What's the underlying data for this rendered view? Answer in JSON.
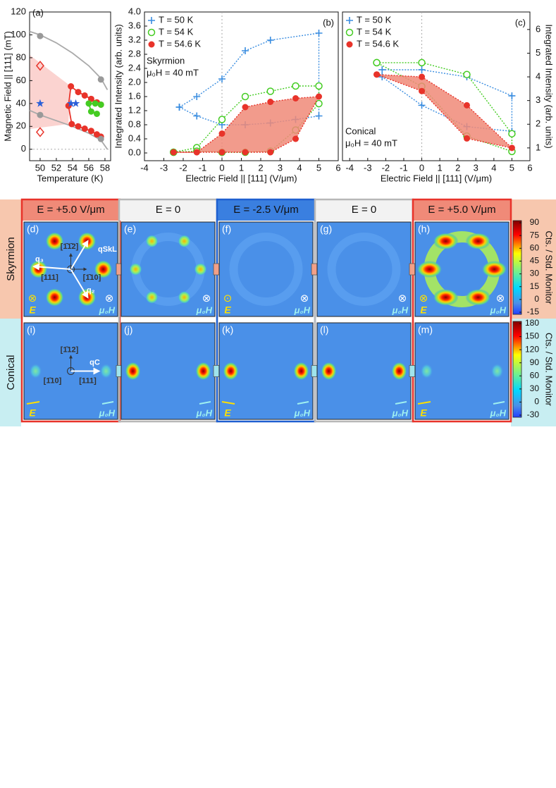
{
  "chart_data": [
    {
      "type": "line",
      "panel_label": "(a)",
      "x_label": "Temperature (K)",
      "y_label": "Magnetic Field || [111] (mT)",
      "xlim": [
        48.7,
        58.7
      ],
      "xticks": [
        50,
        52,
        54,
        56,
        58
      ],
      "ylim": [
        -10,
        120
      ],
      "yticks": [
        0,
        20,
        40,
        60,
        80,
        100,
        120
      ],
      "zero_line": "y",
      "series": [
        {
          "color": "#aaaaaa",
          "line": "solid",
          "marker": "none",
          "x": [
            48.7,
            50,
            52,
            54,
            56,
            57.5,
            58.3
          ],
          "values": [
            103,
            100,
            93,
            84,
            73,
            62,
            52
          ]
        },
        {
          "color": "#aaaaaa",
          "line": "solid",
          "marker": "none",
          "x": [
            48.7,
            50,
            52,
            54,
            56,
            57.5,
            58.3
          ],
          "values": [
            34,
            30,
            25,
            20,
            14,
            8,
            0
          ]
        },
        {
          "color": "#e8332a",
          "line": "solid",
          "marker": "circle",
          "x": [
            57.5,
            57,
            56.3,
            55.5,
            54.7,
            53.8,
            53.5,
            53.9,
            54.7,
            55.5,
            56.3,
            57,
            57.5
          ],
          "values": [
            39,
            41,
            44,
            47,
            50,
            55,
            38,
            22,
            20,
            18,
            16,
            13,
            11
          ]
        },
        {
          "color": "#44cc22",
          "line": "solid",
          "marker": "circle",
          "x": [
            57.5,
            56.8,
            56,
            56.3,
            57
          ],
          "values": [
            39,
            40,
            40,
            33,
            31
          ]
        },
        {
          "color": "#999999",
          "line": "none",
          "marker": "circle",
          "x": [
            50,
            50,
            57.5,
            57.5
          ],
          "values": [
            99,
            30,
            61,
            9
          ]
        },
        {
          "color": "#e8332a",
          "line": "none",
          "marker": "open-diamond",
          "x": [
            50,
            50
          ],
          "values": [
            73,
            15
          ]
        },
        {
          "color": "#2a5fd8",
          "line": "none",
          "marker": "star",
          "x": [
            50,
            53.8,
            54.4
          ],
          "values": [
            40,
            40,
            40
          ]
        }
      ]
    },
    {
      "type": "line",
      "panel_label": "(b)",
      "x_label": "Electric Field || [111] (V/μm)",
      "y_label": "Integrated Intensity (arb. units)",
      "annotations": [
        "Skyrmion",
        "μ₀H = 40 mT"
      ],
      "legend": "top-left",
      "zero_line": "x",
      "xlim": [
        -4,
        6
      ],
      "xticks": [
        -4,
        -3,
        -2,
        -1,
        0,
        1,
        2,
        3,
        4,
        5,
        6
      ],
      "ylim": [
        -0.22,
        4.0
      ],
      "yticks": [
        {
          "value": 0,
          "label": "0.0"
        },
        0.4,
        0.8,
        1.2,
        1.6,
        {
          "value": 2,
          "label": "2.0"
        },
        2.4,
        2.8,
        3.2,
        3.6,
        {
          "value": 4,
          "label": "4.0"
        }
      ],
      "series": [
        {
          "name": "T = 50 K",
          "color": "#3a8de0",
          "line": "dotted",
          "marker": "plus",
          "x": [
            -2.2,
            -1.3,
            0,
            1.2,
            2.5,
            5,
            5,
            3.8,
            2.5,
            1.2,
            0,
            -1.3,
            -2.2
          ],
          "values": [
            1.3,
            1.6,
            2.1,
            2.9,
            3.2,
            3.4,
            1.05,
            0.95,
            0.85,
            0.8,
            0.8,
            1.05,
            1.3
          ]
        },
        {
          "name": "T = 54 K",
          "color": "#44cc22",
          "line": "dotted",
          "marker": "open-circle",
          "x": [
            -2.5,
            -1.3,
            0,
            1.2,
            2.5,
            3.8,
            5,
            5,
            3.8,
            2.5,
            1.2,
            0,
            -1.3,
            -2.5
          ],
          "values": [
            0.02,
            0.15,
            0.95,
            1.6,
            1.75,
            1.9,
            1.9,
            1.4,
            0.65,
            0.05,
            0.02,
            0.02,
            0.05,
            0.02
          ]
        },
        {
          "name": "T = 54.6 K",
          "color": "#e8332a",
          "fill": "#f08a78",
          "line": "dotted",
          "marker": "circle",
          "x": [
            -2.5,
            -1.3,
            0,
            1.2,
            2.5,
            3.8,
            5,
            3.8,
            2.5,
            1.2,
            0,
            -1.3,
            -2.5
          ],
          "values": [
            0.02,
            0.02,
            0.55,
            1.3,
            1.45,
            1.55,
            1.6,
            0.4,
            0.02,
            0.02,
            0.02,
            0.02,
            0.02
          ]
        }
      ]
    },
    {
      "type": "line",
      "panel_label": "(c)",
      "x_label": "Electric Field || [111] (V/μm)",
      "y_label": "Integrated Intensity (arb. units)",
      "annotations": [
        "Conical",
        "μ₀H = 40 mT"
      ],
      "legend": "top-left",
      "zero_line": "x",
      "y_axis_side": "right",
      "xlim": [
        -4.4,
        6
      ],
      "xticks": [
        -4,
        -3,
        -2,
        -1,
        0,
        1,
        2,
        3,
        4,
        5,
        6
      ],
      "ylim": [
        0.46,
        6.74
      ],
      "yticks": [
        1,
        2,
        3,
        4,
        5,
        6
      ],
      "series": [
        {
          "name": "T = 50 K",
          "color": "#3a8de0",
          "line": "dotted",
          "marker": "plus",
          "x": [
            -2.2,
            0,
            2.5,
            5,
            5,
            2.5,
            0,
            -2.2
          ],
          "values": [
            4.3,
            4.3,
            4.0,
            3.2,
            1.7,
            1.9,
            2.8,
            4.0
          ]
        },
        {
          "name": "T = 54 K",
          "color": "#44cc22",
          "line": "dotted",
          "marker": "open-circle",
          "x": [
            -2.5,
            0,
            2.5,
            5,
            5,
            2.5,
            0,
            -2.5
          ],
          "values": [
            4.6,
            4.6,
            4.1,
            1.6,
            0.85,
            1.5,
            3.6,
            4.6
          ]
        },
        {
          "name": "T = 54.6 K",
          "color": "#e8332a",
          "fill": "#f08a78",
          "line": "dotted",
          "marker": "circle",
          "x": [
            -2.5,
            0,
            2.5,
            5,
            2.5,
            0,
            -2.5
          ],
          "values": [
            4.1,
            4.0,
            2.8,
            1.0,
            1.4,
            3.4,
            4.1
          ]
        }
      ]
    }
  ],
  "image_grid": {
    "columns": [
      {
        "header": "E = +5.0 V/μm",
        "header_color": "#f08a78",
        "border_color": "#e8332a"
      },
      {
        "header": "E = 0",
        "header_color": "#f2f2f2",
        "border_color": "#b8b8b8"
      },
      {
        "header": "E = -2.5 V/μm",
        "header_color": "#3a7fe0",
        "border_color": "#1e5fd0"
      },
      {
        "header": "E = 0",
        "header_color": "#f2f2f2",
        "border_color": "#b8b8b8"
      },
      {
        "header": "E = +5.0 V/μm",
        "header_color": "#f08a78",
        "border_color": "#e8332a"
      }
    ],
    "rows": [
      {
        "label": "Skyrmion",
        "color": "#f7c7ae",
        "colorbar": {
          "ticks": [
            90,
            75,
            60,
            45,
            30,
            15,
            0,
            -15
          ],
          "label": "Cts. / Std. Monitor"
        }
      },
      {
        "label": "Conical",
        "color": "#c8eef2",
        "colorbar": {
          "ticks": [
            180,
            150,
            120,
            90,
            60,
            30,
            0,
            -30
          ],
          "label": "Cts. / Std. Monitor"
        }
      }
    ],
    "panels": [
      {
        "label": "(d)",
        "field_symbol": "⊗",
        "field_label": "E",
        "moment_symbol": "⊗",
        "moment_label": "μ₀H",
        "vectors": [
          "q₃",
          "qSkL",
          "q₂",
          "[1̄1̄2]",
          "[111]",
          "[1̄10]"
        ]
      },
      {
        "label": "(e)",
        "moment_symbol": "⊗",
        "moment_label": "μ₀H"
      },
      {
        "label": "(f)",
        "field_symbol": "⊙",
        "field_label": "E",
        "moment_symbol": "⊗",
        "moment_label": "μ₀H"
      },
      {
        "label": "(g)",
        "moment_symbol": "⊗",
        "moment_label": "μ₀H"
      },
      {
        "label": "(h)",
        "field_symbol": "⊗",
        "field_label": "E",
        "moment_symbol": "⊗",
        "moment_label": "μ₀H"
      },
      {
        "label": "(i)",
        "field_label": "E",
        "moment_label": "μ₀H",
        "vectors": [
          "[1̄12]",
          "[1̄10]",
          "[111]",
          "qC"
        ]
      },
      {
        "label": "(j)",
        "moment_label": "μ₀H"
      },
      {
        "label": "(k)",
        "field_label": "E",
        "moment_label": "μ₀H"
      },
      {
        "label": "(l)",
        "moment_label": "μ₀H"
      },
      {
        "label": "(m)",
        "field_label": "E",
        "moment_label": "μ₀H"
      }
    ]
  }
}
